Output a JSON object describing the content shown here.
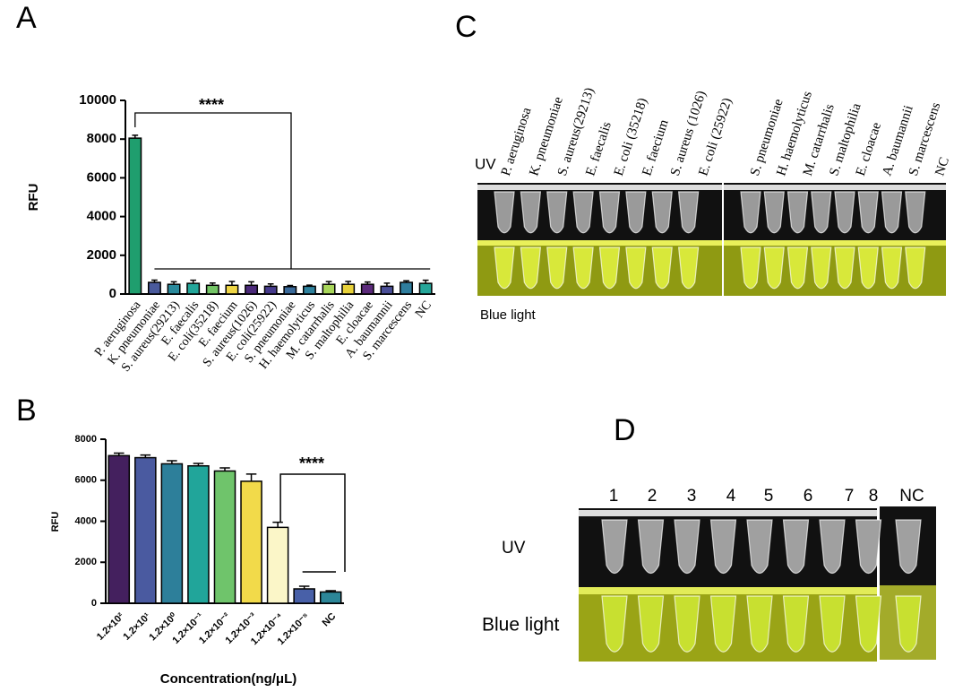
{
  "panel_labels": [
    "A",
    "B",
    "C",
    "D"
  ],
  "chart_data": [
    {
      "type": "bar",
      "ylabel": "RFU",
      "categories": [
        "P. aeruginosa",
        "K. pneumoniae",
        "S. aureus(29213)",
        "E. faecalis",
        "E. coli(35218)",
        "E. faecium",
        "S. aureus(1026)",
        "E. coli(25922)",
        "S. pneumoniae",
        "H. haemolyticus",
        "M. catarrhalis",
        "S. maltophilia",
        "E. cloacae",
        "A. baumannii",
        "S. marcescens",
        "NC"
      ],
      "values": [
        8050,
        600,
        500,
        550,
        450,
        450,
        450,
        400,
        380,
        400,
        500,
        500,
        500,
        400,
        600,
        550
      ],
      "errors": [
        150,
        120,
        130,
        160,
        120,
        200,
        180,
        120,
        60,
        60,
        140,
        150,
        120,
        160,
        80,
        160
      ],
      "colors": [
        "#1f9e6e",
        "#4a5a9c",
        "#2a8a9c",
        "#23a69a",
        "#74c566",
        "#efd646",
        "#4b2a7a",
        "#463b8c",
        "#3a6a9a",
        "#2f829e",
        "#a8d65a",
        "#e8d23a",
        "#5b2a7b",
        "#4a4f98",
        "#2f7e9e",
        "#25a69a"
      ],
      "ylim": [
        0,
        10000
      ],
      "yticks": [
        0,
        2000,
        4000,
        6000,
        8000,
        10000
      ],
      "annotations": [
        "****"
      ]
    },
    {
      "type": "bar",
      "ylabel": "RFU",
      "xlabel": "Concentration(ng/μL)",
      "categories": [
        "1.2×10²",
        "1.2×10¹",
        "1.2×10⁰",
        "1.2×10⁻¹",
        "1.2×10⁻²",
        "1.2×10⁻³",
        "1.2×10⁻⁴",
        "1.2×10⁻⁵",
        "NC"
      ],
      "values": [
        7200,
        7100,
        6800,
        6700,
        6450,
        5950,
        3700,
        700,
        550
      ],
      "errors": [
        120,
        130,
        150,
        120,
        150,
        350,
        250,
        130,
        60
      ],
      "colors": [
        "#44205e",
        "#4a5aa0",
        "#2d7f9a",
        "#21a59a",
        "#6fc46b",
        "#f2da4a",
        "#fbf6c8",
        "#4860a8",
        "#2c8698"
      ],
      "ylim": [
        0,
        8000
      ],
      "yticks": [
        0,
        2000,
        4000,
        6000,
        8000
      ],
      "annotations": [
        "****"
      ]
    }
  ],
  "photo_c": {
    "tube_labels": [
      "P. aeruginosa",
      "K. pneumoniae",
      "S. aureus(29213)",
      "E. faecalis",
      "E. coli (35218)",
      "E. faecium",
      "S. aureus (1026)",
      "E. coli (25922)",
      "S. pneumoniae",
      "H. haemolyticus",
      "M. catarrhalis",
      "S. maltophilia",
      "E. cloacae",
      "A. baumannii",
      "S. marcescens",
      "NC"
    ],
    "rows": [
      "UV",
      "Blue light"
    ]
  },
  "photo_d": {
    "tube_labels": [
      "1",
      "2",
      "3",
      "4",
      "5",
      "6",
      "7",
      "8",
      "NC"
    ],
    "rows": [
      "UV",
      "Blue light"
    ]
  }
}
